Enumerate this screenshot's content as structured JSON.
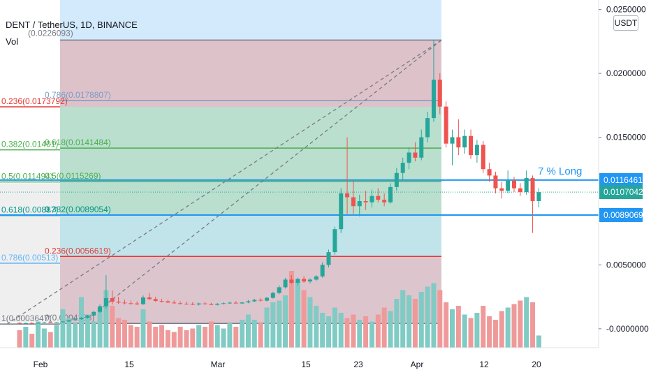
{
  "chart_data": {
    "type": "candlestick",
    "symbol_title": "DENT / TetherUS, 1D, BINANCE",
    "volume_label": "Vol",
    "currency": "USDT",
    "price_axis_ticks": [
      "0.0250000",
      "0.0200000",
      "0.0150000",
      "0.0050000",
      "-0.0000000"
    ],
    "date_axis_ticks": [
      "Feb",
      "15",
      "Mar",
      "15",
      "23",
      "Apr",
      "12",
      "20"
    ],
    "price_tags": [
      {
        "label": "0.0116461",
        "value": 0.0116461
      },
      {
        "label": "0.0107042",
        "value": 0.0107042
      },
      {
        "label": "0.0089069",
        "value": 0.0089069
      }
    ],
    "annotation": "7 % Long",
    "fib_levels_left": [
      {
        "text": "0.236(0.0173792)",
        "value": 0.0173792,
        "color": "#e53935"
      },
      {
        "text": "0.382(0.01401)",
        "value": 0.01401,
        "color": "#4caf50"
      },
      {
        "text": "0.5(0.011494)",
        "value": 0.011494,
        "color": "#4caf50"
      },
      {
        "text": "0.618(0.00887)",
        "value": 0.00887,
        "color": "#009688"
      },
      {
        "text": "0.786(0.00513)",
        "value": 0.00513,
        "color": "#64b5f6"
      },
      {
        "text": "1(0.0003647)",
        "value": 0.0003647,
        "color": "#787b86"
      }
    ],
    "fib_levels_right": [
      {
        "text": "0.786(0.0178807)",
        "value": 0.0178807,
        "color": "#7b9cc5"
      },
      {
        "text": "0.618(0.0141484)",
        "value": 0.0141484,
        "color": "#4caf50"
      },
      {
        "text": "0.5(0.0115269)",
        "value": 0.0115269,
        "color": "#4caf50"
      },
      {
        "text": "0.382(0.0089054)",
        "value": 0.0089054,
        "color": "#009688"
      },
      {
        "text": "0.236(0.0056619)",
        "value": 0.0056619,
        "color": "#e53935"
      },
      {
        "text": "0(0.0004188)",
        "value": 0.0004188,
        "color": "#787b86"
      }
    ],
    "top_partial_label": "(0.0226093)",
    "candles": [
      {
        "o": 0.00046,
        "h": 0.0005,
        "l": 0.00042,
        "c": 0.00044
      },
      {
        "o": 0.00044,
        "h": 0.00047,
        "l": 0.0004,
        "c": 0.00045
      },
      {
        "o": 0.00045,
        "h": 0.0005,
        "l": 0.00041,
        "c": 0.00043
      },
      {
        "o": 0.00043,
        "h": 0.00048,
        "l": 0.0004,
        "c": 0.00046
      },
      {
        "o": 0.00046,
        "h": 0.00052,
        "l": 0.00043,
        "c": 0.0005
      },
      {
        "o": 0.0005,
        "h": 0.00055,
        "l": 0.00046,
        "c": 0.00048
      },
      {
        "o": 0.00048,
        "h": 0.00053,
        "l": 0.00044,
        "c": 0.00051
      },
      {
        "o": 0.00051,
        "h": 0.0006,
        "l": 0.00048,
        "c": 0.00057
      },
      {
        "o": 0.00057,
        "h": 0.0007,
        "l": 0.00052,
        "c": 0.00066
      },
      {
        "o": 0.00066,
        "h": 0.0008,
        "l": 0.0006,
        "c": 0.00075
      },
      {
        "o": 0.00075,
        "h": 0.0009,
        "l": 0.0007,
        "c": 0.00086
      },
      {
        "o": 0.00086,
        "h": 0.0011,
        "l": 0.0008,
        "c": 0.00104
      },
      {
        "o": 0.00104,
        "h": 0.0014,
        "l": 0.00098,
        "c": 0.00132
      },
      {
        "o": 0.00132,
        "h": 0.0019,
        "l": 0.00125,
        "c": 0.00176
      },
      {
        "o": 0.00176,
        "h": 0.0042,
        "l": 0.0016,
        "c": 0.0024
      },
      {
        "o": 0.0024,
        "h": 0.003,
        "l": 0.0019,
        "c": 0.00212
      },
      {
        "o": 0.00212,
        "h": 0.0025,
        "l": 0.00195,
        "c": 0.00205
      },
      {
        "o": 0.00205,
        "h": 0.00228,
        "l": 0.0019,
        "c": 0.002
      },
      {
        "o": 0.002,
        "h": 0.0022,
        "l": 0.00188,
        "c": 0.00198
      },
      {
        "o": 0.00198,
        "h": 0.00215,
        "l": 0.00185,
        "c": 0.00192
      },
      {
        "o": 0.00192,
        "h": 0.0026,
        "l": 0.00188,
        "c": 0.00245
      },
      {
        "o": 0.00245,
        "h": 0.0028,
        "l": 0.00225,
        "c": 0.00232
      },
      {
        "o": 0.00232,
        "h": 0.0025,
        "l": 0.0021,
        "c": 0.00218
      },
      {
        "o": 0.00218,
        "h": 0.00235,
        "l": 0.00205,
        "c": 0.00215
      },
      {
        "o": 0.00215,
        "h": 0.00226,
        "l": 0.002,
        "c": 0.00205
      },
      {
        "o": 0.00205,
        "h": 0.00222,
        "l": 0.00195,
        "c": 0.002
      },
      {
        "o": 0.002,
        "h": 0.00215,
        "l": 0.0019,
        "c": 0.00196
      },
      {
        "o": 0.00196,
        "h": 0.00212,
        "l": 0.00188,
        "c": 0.00194
      },
      {
        "o": 0.00194,
        "h": 0.00208,
        "l": 0.00185,
        "c": 0.0019
      },
      {
        "o": 0.0019,
        "h": 0.00205,
        "l": 0.00182,
        "c": 0.00198
      },
      {
        "o": 0.00198,
        "h": 0.0021,
        "l": 0.0019,
        "c": 0.00192
      },
      {
        "o": 0.00192,
        "h": 0.00204,
        "l": 0.00184,
        "c": 0.00188
      },
      {
        "o": 0.00188,
        "h": 0.00202,
        "l": 0.00182,
        "c": 0.00196
      },
      {
        "o": 0.00196,
        "h": 0.00208,
        "l": 0.0019,
        "c": 0.002
      },
      {
        "o": 0.002,
        "h": 0.00212,
        "l": 0.00194,
        "c": 0.00204
      },
      {
        "o": 0.00204,
        "h": 0.00216,
        "l": 0.00198,
        "c": 0.00198
      },
      {
        "o": 0.00198,
        "h": 0.0021,
        "l": 0.00192,
        "c": 0.00206
      },
      {
        "o": 0.00206,
        "h": 0.00225,
        "l": 0.002,
        "c": 0.00215
      },
      {
        "o": 0.00215,
        "h": 0.00235,
        "l": 0.00208,
        "c": 0.00226
      },
      {
        "o": 0.00226,
        "h": 0.0024,
        "l": 0.00212,
        "c": 0.0022
      },
      {
        "o": 0.0022,
        "h": 0.0025,
        "l": 0.00214,
        "c": 0.00242
      },
      {
        "o": 0.00242,
        "h": 0.0029,
        "l": 0.00236,
        "c": 0.0028
      },
      {
        "o": 0.0028,
        "h": 0.0034,
        "l": 0.0027,
        "c": 0.00325
      },
      {
        "o": 0.00325,
        "h": 0.004,
        "l": 0.00315,
        "c": 0.00385
      },
      {
        "o": 0.00385,
        "h": 0.0042,
        "l": 0.0035,
        "c": 0.0036
      },
      {
        "o": 0.0036,
        "h": 0.004,
        "l": 0.0034,
        "c": 0.0039
      },
      {
        "o": 0.0039,
        "h": 0.0041,
        "l": 0.0036,
        "c": 0.0037
      },
      {
        "o": 0.0037,
        "h": 0.00395,
        "l": 0.00355,
        "c": 0.00385
      },
      {
        "o": 0.00385,
        "h": 0.0042,
        "l": 0.00375,
        "c": 0.0041
      },
      {
        "o": 0.0041,
        "h": 0.0052,
        "l": 0.004,
        "c": 0.005
      },
      {
        "o": 0.005,
        "h": 0.0062,
        "l": 0.0048,
        "c": 0.006
      },
      {
        "o": 0.006,
        "h": 0.008,
        "l": 0.0058,
        "c": 0.0078
      },
      {
        "o": 0.0078,
        "h": 0.011,
        "l": 0.0075,
        "c": 0.0106
      },
      {
        "o": 0.0106,
        "h": 0.015,
        "l": 0.009,
        "c": 0.0103
      },
      {
        "o": 0.0103,
        "h": 0.0116,
        "l": 0.009,
        "c": 0.0096
      },
      {
        "o": 0.0096,
        "h": 0.0105,
        "l": 0.0088,
        "c": 0.01
      },
      {
        "o": 0.01,
        "h": 0.0108,
        "l": 0.0093,
        "c": 0.0099
      },
      {
        "o": 0.0099,
        "h": 0.0109,
        "l": 0.0095,
        "c": 0.0104
      },
      {
        "o": 0.0104,
        "h": 0.011,
        "l": 0.0099,
        "c": 0.0101
      },
      {
        "o": 0.0101,
        "h": 0.0106,
        "l": 0.0096,
        "c": 0.0099
      },
      {
        "o": 0.0099,
        "h": 0.0114,
        "l": 0.0098,
        "c": 0.0111
      },
      {
        "o": 0.0111,
        "h": 0.0126,
        "l": 0.0108,
        "c": 0.0122
      },
      {
        "o": 0.0122,
        "h": 0.0134,
        "l": 0.0117,
        "c": 0.013
      },
      {
        "o": 0.013,
        "h": 0.0142,
        "l": 0.0125,
        "c": 0.0138
      },
      {
        "o": 0.0138,
        "h": 0.0146,
        "l": 0.0131,
        "c": 0.0134
      },
      {
        "o": 0.0134,
        "h": 0.0156,
        "l": 0.0132,
        "c": 0.015
      },
      {
        "o": 0.015,
        "h": 0.017,
        "l": 0.0146,
        "c": 0.0165
      },
      {
        "o": 0.0165,
        "h": 0.0226,
        "l": 0.0162,
        "c": 0.0195
      },
      {
        "o": 0.0195,
        "h": 0.02,
        "l": 0.0168,
        "c": 0.0174
      },
      {
        "o": 0.0174,
        "h": 0.0178,
        "l": 0.0142,
        "c": 0.0145
      },
      {
        "o": 0.0145,
        "h": 0.0156,
        "l": 0.0128,
        "c": 0.015
      },
      {
        "o": 0.015,
        "h": 0.0164,
        "l": 0.0136,
        "c": 0.0142
      },
      {
        "o": 0.0142,
        "h": 0.0156,
        "l": 0.0137,
        "c": 0.0151
      },
      {
        "o": 0.0151,
        "h": 0.0156,
        "l": 0.0133,
        "c": 0.0136
      },
      {
        "o": 0.0136,
        "h": 0.0148,
        "l": 0.013,
        "c": 0.0144
      },
      {
        "o": 0.0144,
        "h": 0.0147,
        "l": 0.0122,
        "c": 0.0125
      },
      {
        "o": 0.0125,
        "h": 0.013,
        "l": 0.0115,
        "c": 0.012
      },
      {
        "o": 0.012,
        "h": 0.0123,
        "l": 0.0106,
        "c": 0.011
      },
      {
        "o": 0.011,
        "h": 0.0115,
        "l": 0.0102,
        "c": 0.0108
      },
      {
        "o": 0.0108,
        "h": 0.0124,
        "l": 0.0106,
        "c": 0.0116
      },
      {
        "o": 0.0116,
        "h": 0.0119,
        "l": 0.0107,
        "c": 0.011
      },
      {
        "o": 0.011,
        "h": 0.0114,
        "l": 0.0104,
        "c": 0.0107
      },
      {
        "o": 0.0107,
        "h": 0.0124,
        "l": 0.0105,
        "c": 0.0118
      },
      {
        "o": 0.0118,
        "h": 0.012,
        "l": 0.0075,
        "c": 0.01
      },
      {
        "o": 0.01,
        "h": 0.011,
        "l": 0.0095,
        "c": 0.0107
      }
    ],
    "volumes": [
      1,
      1.2,
      0.8,
      1.5,
      1.1,
      0.9,
      1.3,
      2.2,
      1.7,
      1.4,
      2.9,
      1.9,
      1.5,
      2.3,
      3.3,
      2.4,
      1.7,
      1.6,
      1.3,
      1.2,
      2.2,
      1.5,
      1.2,
      1.3,
      1.0,
      0.9,
      1.2,
      1.0,
      1.1,
      1.3,
      1.2,
      1.5,
      1.3,
      1.1,
      1.4,
      1.2,
      1.6,
      1.9,
      1.6,
      1.4,
      2.3,
      2.6,
      2.7,
      3.0,
      4.4,
      3.8,
      3.3,
      2.9,
      2.4,
      2.0,
      1.8,
      2.3,
      2.0,
      1.7,
      1.9,
      1.6,
      1.8,
      1.5,
      1.9,
      2.3,
      2.1,
      2.8,
      3.3,
      3.0,
      2.8,
      3.2,
      3.5,
      3.7,
      3.3,
      2.6,
      2.2,
      2.4,
      1.9,
      1.7,
      2.0,
      2.4,
      1.8,
      1.6,
      2.1,
      2.3,
      2.5,
      2.7,
      2.9,
      2.6,
      0.7
    ],
    "ylim": [
      -0.0005,
      0.0252
    ]
  }
}
